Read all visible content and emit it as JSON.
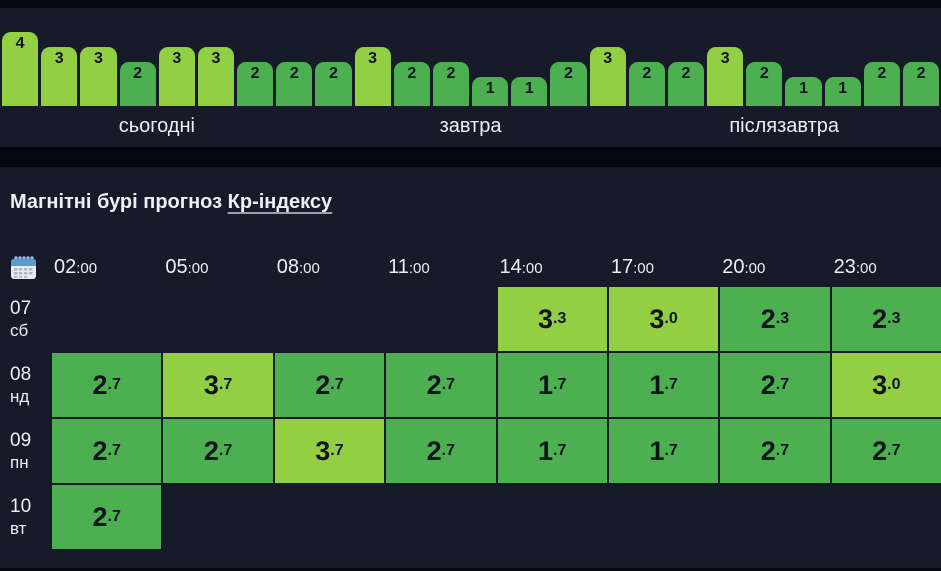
{
  "theme": {
    "colors": {
      "page_bg": "#05070f",
      "panel_bg": "#171b29",
      "light_green": "#92cf42",
      "green": "#4cb050",
      "text_light": "#edeff4",
      "text_dark": "#0f1420",
      "link_underline": "#9aa1ad",
      "calendar_blue": "#5b9bd5"
    },
    "color_legend": "Kp >= 3 uses light_green, Kp < 3 uses green"
  },
  "section": {
    "title_prefix": "Магнітні бурі прогноз ",
    "title_link": "Кр-індексу"
  },
  "chart_data": [
    {
      "type": "bar",
      "title": "3-day Kp-index bar strip",
      "ylim": [
        0,
        4
      ],
      "legend_position": "none",
      "grid": false,
      "groups": [
        {
          "label": "сьогодні",
          "values": [
            4,
            3,
            3,
            2,
            3,
            3,
            2,
            2
          ]
        },
        {
          "label": "завтра",
          "values": [
            2,
            3,
            2,
            2,
            1,
            1,
            2,
            3
          ]
        },
        {
          "label": "післязавтра",
          "values": [
            2,
            2,
            3,
            2,
            1,
            1,
            2,
            2
          ]
        }
      ]
    },
    {
      "type": "table",
      "title": "Магнітні бурі прогноз Кр-індексу",
      "corner_icon": "calendar-icon",
      "columns": [
        "02:00",
        "05:00",
        "08:00",
        "11:00",
        "14:00",
        "17:00",
        "20:00",
        "23:00"
      ],
      "rows": [
        {
          "date": "07",
          "weekday": "сб",
          "values": [
            null,
            null,
            null,
            null,
            3.3,
            3.0,
            2.3,
            2.3
          ]
        },
        {
          "date": "08",
          "weekday": "нд",
          "values": [
            2.7,
            3.7,
            2.7,
            2.7,
            1.7,
            1.7,
            2.7,
            3.0
          ]
        },
        {
          "date": "09",
          "weekday": "пн",
          "values": [
            2.7,
            2.7,
            3.7,
            2.7,
            1.7,
            1.7,
            2.7,
            2.7
          ]
        },
        {
          "date": "10",
          "weekday": "вт",
          "values": [
            2.7,
            null,
            null,
            null,
            null,
            null,
            null,
            null
          ]
        }
      ]
    }
  ]
}
